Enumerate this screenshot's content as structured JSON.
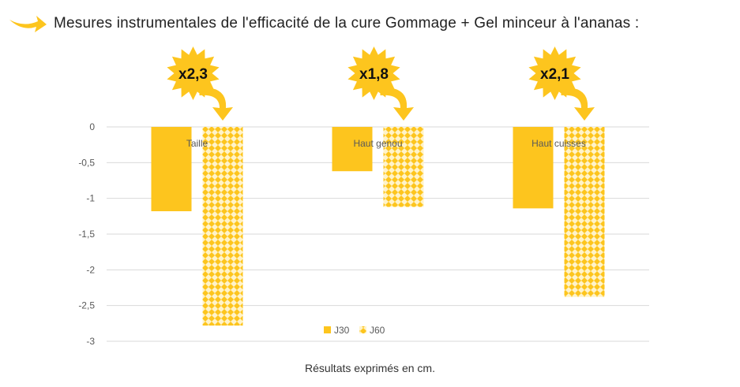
{
  "header": {
    "title": "Mesures instrumentales de l'efficacité de la cure Gommage + Gel minceur à l'ananas :",
    "arrow_icon": "swoosh-arrow-icon"
  },
  "footnote": "Résultats exprimés en cm.",
  "colors": {
    "accent": "#FDC51E",
    "j60_light": "#FFE9A6",
    "grid": "#D9D9D9",
    "text": "#595959"
  },
  "chart_data": {
    "type": "bar",
    "categories": [
      "Taille",
      "Haut genou",
      "Haut cuisses"
    ],
    "series": [
      {
        "name": "J30",
        "values": [
          -1.18,
          -0.62,
          -1.14
        ],
        "pattern": "solid"
      },
      {
        "name": "J60",
        "values": [
          -2.78,
          -1.12,
          -2.38
        ],
        "pattern": "diamond"
      }
    ],
    "ylim": [
      -3,
      0
    ],
    "yticks": [
      0,
      -0.5,
      -1,
      -1.5,
      -2,
      -2.5,
      -3
    ],
    "ytick_labels": [
      "0",
      "-0,5",
      "-1",
      "-1,5",
      "-2",
      "-2,5",
      "-3"
    ],
    "grid": true,
    "legend_position": "bottom-inside",
    "annotations": [
      "x2,3",
      "x1,8",
      "x2,1"
    ],
    "xlabel": "",
    "ylabel": ""
  }
}
